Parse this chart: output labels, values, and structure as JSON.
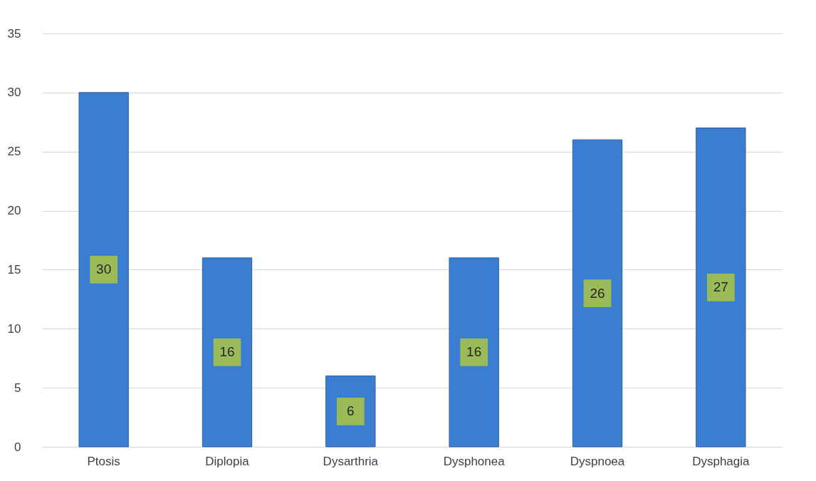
{
  "chart_data": {
    "type": "bar",
    "categories": [
      "Ptosis",
      "Diplopia",
      "Dysarthria",
      "Dysphonea",
      "Dyspnoea",
      "Dysphagia"
    ],
    "values": [
      30,
      16,
      6,
      16,
      26,
      27
    ],
    "color": "#3b7dd0",
    "ylim": [
      0,
      35
    ],
    "yticks": [
      0,
      5,
      10,
      15,
      20,
      25,
      30,
      35
    ],
    "grid": "y",
    "data_labels": true
  }
}
